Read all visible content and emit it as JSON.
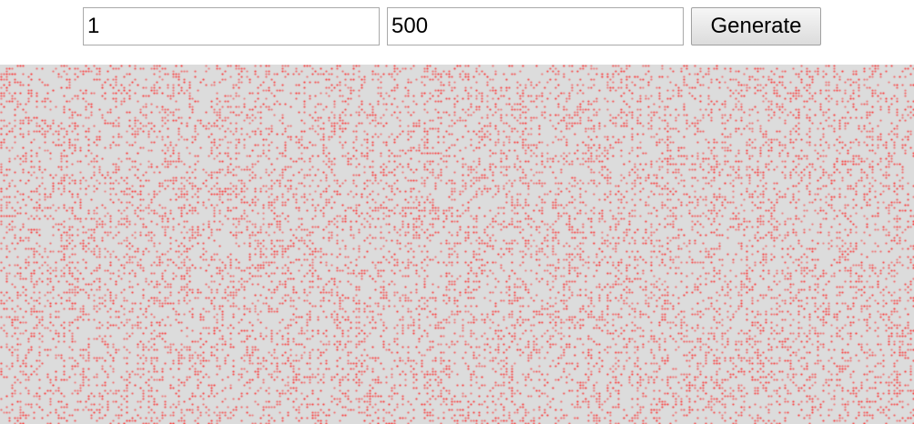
{
  "controls": {
    "start_value": "1",
    "end_value": "500",
    "generate_label": "Generate"
  },
  "canvas": {
    "background": "#dcdcdc",
    "dot_color": "#ff2a2a"
  }
}
